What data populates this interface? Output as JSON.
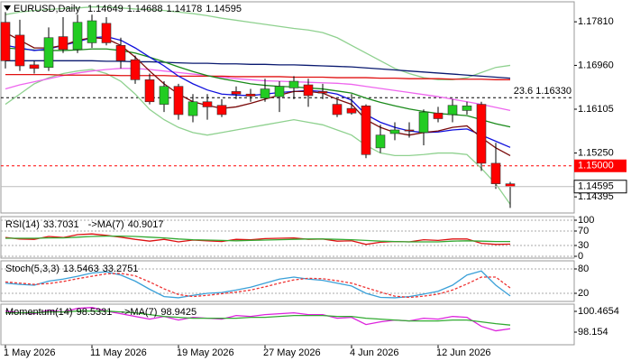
{
  "chart_data": [
    {
      "type": "candlestick",
      "title": "EURUSD,Daily",
      "categories": [
        "1 May 2026",
        null,
        null,
        null,
        null,
        null,
        "11 May 2026",
        null,
        null,
        null,
        null,
        null,
        "19 May 2026",
        null,
        null,
        null,
        null,
        null,
        "27 May 2026",
        null,
        null,
        null,
        null,
        null,
        "4 Jun 2026",
        null,
        null,
        null,
        null,
        null,
        "12 Jun 2026",
        null,
        null,
        null,
        null,
        null
      ],
      "open": [
        1.178,
        1.1755,
        1.1697,
        1.1692,
        1.1752,
        1.1727,
        1.174,
        1.1778,
        1.1735,
        1.1707,
        1.1668,
        1.162,
        1.1655,
        1.1598,
        1.1625,
        1.1618,
        1.1645,
        1.164,
        1.1632,
        1.1635,
        1.1652,
        1.1658,
        1.1645,
        1.162,
        1.1612,
        1.1617,
        1.1535,
        1.1563,
        1.157,
        1.1565,
        1.1603,
        1.16,
        1.1608,
        1.162,
        1.1505,
        1.14649
      ],
      "high": [
        1.18,
        1.1785,
        1.1705,
        1.177,
        1.179,
        1.1795,
        1.1795,
        1.179,
        1.175,
        1.1715,
        1.168,
        1.1665,
        1.166,
        1.164,
        1.164,
        1.163,
        1.1655,
        1.165,
        1.167,
        1.1665,
        1.1675,
        1.167,
        1.166,
        1.163,
        1.164,
        1.162,
        1.158,
        1.1585,
        1.1585,
        1.161,
        1.1615,
        1.163,
        1.1625,
        1.1625,
        1.1545,
        1.14688
      ],
      "low": [
        1.169,
        1.1685,
        1.168,
        1.1685,
        1.172,
        1.172,
        1.173,
        1.1735,
        1.169,
        1.166,
        1.162,
        1.1605,
        1.159,
        1.1585,
        1.159,
        1.1595,
        1.163,
        1.1625,
        1.1625,
        1.1605,
        1.163,
        1.1615,
        1.163,
        1.1595,
        1.16,
        1.1515,
        1.1525,
        1.155,
        1.1555,
        1.154,
        1.1585,
        1.1585,
        1.16,
        1.149,
        1.1455,
        1.14178
      ],
      "close": [
        1.1705,
        1.1695,
        1.169,
        1.175,
        1.1727,
        1.178,
        1.1783,
        1.174,
        1.1705,
        1.1668,
        1.1625,
        1.1655,
        1.16,
        1.1625,
        1.1615,
        1.16,
        1.164,
        1.1636,
        1.165,
        1.1655,
        1.1665,
        1.1637,
        1.1642,
        1.16,
        1.1603,
        1.1522,
        1.156,
        1.157,
        1.1568,
        1.1605,
        1.1592,
        1.1618,
        1.1617,
        1.1505,
        1.1465,
        1.14595
      ],
      "up_color": "#22cc22",
      "down_color": "#ff0000",
      "series": [
        {
          "color": "#8fd18f",
          "values": [
            1.1795,
            1.18,
            1.1803,
            1.1805,
            1.1807,
            1.1808,
            1.181,
            1.181,
            1.1808,
            1.1806,
            1.1805,
            1.1803,
            1.18,
            1.1797,
            1.1793,
            1.1788,
            1.1784,
            1.178,
            1.1776,
            1.1772,
            1.1768,
            1.1765,
            1.176,
            1.175,
            1.1735,
            1.172,
            1.1705,
            1.169,
            1.168,
            1.1672,
            1.1668,
            1.1668,
            1.1672,
            1.1682,
            1.1692,
            1.1696
          ]
        },
        {
          "color": "#8fd18f",
          "values": [
            1.162,
            1.164,
            1.166,
            1.1672,
            1.168,
            1.1685,
            1.1688,
            1.168,
            1.1665,
            1.164,
            1.161,
            1.159,
            1.1575,
            1.1565,
            1.156,
            1.1565,
            1.157,
            1.1575,
            1.158,
            1.1585,
            1.159,
            1.1585,
            1.158,
            1.157,
            1.156,
            1.154,
            1.1525,
            1.152,
            1.152,
            1.1522,
            1.1525,
            1.1525,
            1.1522,
            1.1495,
            1.1465,
            1.1425
          ]
        },
        {
          "color": "#ee66ee",
          "values": [
            1.165,
            1.1658,
            1.1664,
            1.167,
            1.1676,
            1.1681,
            1.1685,
            1.1688,
            1.169,
            1.169,
            1.1688,
            1.1685,
            1.1682,
            1.1679,
            1.1676,
            1.1673,
            1.167,
            1.1668,
            1.1666,
            1.1665,
            1.1664,
            1.1663,
            1.1662,
            1.1661,
            1.1659,
            1.1655,
            1.1651,
            1.1647,
            1.1643,
            1.1639,
            1.1635,
            1.163,
            1.1625,
            1.162,
            1.1614,
            1.1608
          ]
        },
        {
          "color": "#e01010",
          "values": [
            1.1678,
            1.1678,
            1.1678,
            1.1678,
            1.1677,
            1.1677,
            1.1677,
            1.1677,
            1.1676,
            1.1676,
            1.1676,
            1.1676,
            1.1675,
            1.1675,
            1.1675,
            1.1675,
            1.1674,
            1.1674,
            1.1674,
            1.1674,
            1.1673,
            1.1673,
            1.1673,
            1.1672,
            1.1672,
            1.1672,
            1.1671,
            1.1671,
            1.167,
            1.167,
            1.167,
            1.1669,
            1.1669,
            1.1669,
            1.1668,
            1.1668
          ]
        },
        {
          "color": "#0a1a70",
          "values": [
            1.1705,
            1.1705,
            1.1705,
            1.1705,
            1.1705,
            1.1705,
            1.1705,
            1.1704,
            1.1704,
            1.1703,
            1.1703,
            1.1702,
            1.1701,
            1.17,
            1.17,
            1.1699,
            1.1699,
            1.1698,
            1.1698,
            1.1697,
            1.1697,
            1.1696,
            1.1695,
            1.1694,
            1.1693,
            1.1691,
            1.1689,
            1.1687,
            1.1685,
            1.1683,
            1.1681,
            1.1679,
            1.1677,
            1.1675,
            1.1673,
            1.1671
          ]
        },
        {
          "color": "#1a8a1a",
          "values": [
            1.173,
            1.1728,
            1.1726,
            1.1725,
            1.1725,
            1.1726,
            1.1728,
            1.1728,
            1.1725,
            1.172,
            1.1712,
            1.1703,
            1.1693,
            1.1684,
            1.1676,
            1.167,
            1.1665,
            1.166,
            1.1657,
            1.1655,
            1.1654,
            1.1652,
            1.165,
            1.1646,
            1.1642,
            1.1632,
            1.1624,
            1.1617,
            1.1611,
            1.1606,
            1.1602,
            1.16,
            1.1598,
            1.159,
            1.1582,
            1.1576
          ]
        },
        {
          "color": "#1010dd",
          "values": [
            1.1735,
            1.173,
            1.1725,
            1.1728,
            1.1735,
            1.1742,
            1.175,
            1.1752,
            1.1745,
            1.173,
            1.1712,
            1.1695,
            1.1675,
            1.166,
            1.1648,
            1.164,
            1.1638,
            1.1637,
            1.164,
            1.1643,
            1.1645,
            1.1647,
            1.1645,
            1.164,
            1.1628,
            1.16,
            1.1585,
            1.1575,
            1.1568,
            1.1565,
            1.1566,
            1.157,
            1.1572,
            1.156,
            1.1548,
            1.1536
          ]
        },
        {
          "color": "#7a0a0a",
          "values": [
            1.176,
            1.1745,
            1.173,
            1.173,
            1.1735,
            1.1745,
            1.175,
            1.1748,
            1.1735,
            1.1712,
            1.1685,
            1.166,
            1.164,
            1.1625,
            1.1618,
            1.1612,
            1.1615,
            1.1622,
            1.163,
            1.1638,
            1.1645,
            1.1645,
            1.1642,
            1.163,
            1.162,
            1.159,
            1.1575,
            1.1565,
            1.156,
            1.1565,
            1.1568,
            1.1575,
            1.1578,
            1.1555,
            1.1535,
            1.152
          ]
        }
      ],
      "levels": [
        {
          "value": 1.1633,
          "label": "23.6 1.16330",
          "color": "#000000"
        },
        {
          "value": 1.15,
          "label": "1.15000",
          "color": "#ff0000"
        }
      ],
      "ylim": [
        1.1408,
        1.182
      ],
      "yticks": [
        {
          "value": 1.1781,
          "label": "1.17810"
        },
        {
          "value": 1.1696,
          "label": "1.16960"
        },
        1.16105,
        {
          "value": 1.1525,
          "label": "1.15250"
        },
        1.14395
      ]
    },
    {
      "type": "line",
      "grid": true,
      "ylim": [
        -5,
        110
      ],
      "yticks": [
        100,
        70,
        30,
        0
      ],
      "series": [
        {
          "name": "RSI(14)",
          "color": "#dd1111",
          "values": [
            52,
            48,
            47,
            55,
            52,
            60,
            62,
            58,
            53,
            47,
            42,
            47,
            40,
            45,
            43,
            41,
            47,
            46,
            49,
            50,
            51,
            47,
            48,
            42,
            43,
            33,
            39,
            41,
            40,
            46,
            44,
            48,
            48,
            36,
            33,
            33.7031
          ]
        },
        {
          "name": "->MA(7)",
          "color": "#33aa33",
          "values": [
            50,
            50,
            50,
            51,
            51,
            53,
            55,
            56,
            56,
            55,
            53,
            51,
            48,
            46,
            45,
            44,
            43,
            44,
            45,
            46,
            47,
            48,
            48,
            47,
            46,
            44,
            42,
            41,
            40,
            40,
            40,
            42,
            43,
            42,
            41,
            40.9017
          ]
        }
      ]
    },
    {
      "type": "line",
      "grid": true,
      "ylim": [
        0,
        100
      ],
      "yticks": [
        80,
        20
      ],
      "series": [
        {
          "name": "Stoch(5,3,3)",
          "color": "#3aa0d8",
          "values": [
            45,
            42,
            40,
            50,
            55,
            62,
            70,
            73,
            65,
            50,
            30,
            12,
            9,
            15,
            20,
            22,
            28,
            35,
            45,
            55,
            60,
            55,
            52,
            45,
            38,
            20,
            10,
            9,
            12,
            18,
            25,
            40,
            65,
            75,
            40,
            13.5463
          ]
        },
        {
          "color": "#ee3333",
          "dashed": true,
          "values": [
            48,
            45,
            42,
            44,
            49,
            56,
            62,
            68,
            69,
            63,
            48,
            31,
            17,
            12,
            15,
            19,
            23,
            28,
            36,
            45,
            53,
            57,
            56,
            51,
            45,
            34,
            23,
            13,
            10,
            13,
            18,
            28,
            43,
            60,
            60,
            33.2751
          ]
        }
      ]
    },
    {
      "type": "line",
      "grid": false,
      "ylim": [
        96.75,
        101.27
      ],
      "yticks": [
        100.4654,
        98.154
      ],
      "series": [
        {
          "name": "Momentum(14)",
          "color": "#dd22dd",
          "values": [
            100.5,
            100.3,
            100.2,
            100.6,
            100.4,
            100.8,
            100.9,
            100.5,
            100.2,
            99.9,
            99.6,
            99.9,
            99.5,
            99.8,
            99.7,
            99.6,
            100.0,
            99.9,
            100.1,
            100.2,
            100.3,
            100.1,
            100.1,
            99.7,
            99.8,
            99.0,
            99.3,
            99.5,
            99.4,
            99.7,
            99.6,
            99.9,
            99.8,
            98.8,
            98.3,
            98.5331
          ]
        },
        {
          "name": "->MA(7)",
          "color": "#33aa33",
          "values": [
            100.3,
            100.3,
            100.3,
            100.4,
            100.4,
            100.5,
            100.5,
            100.5,
            100.4,
            100.3,
            100.1,
            99.9,
            99.8,
            99.7,
            99.7,
            99.7,
            99.7,
            99.8,
            99.8,
            99.9,
            100.0,
            100.0,
            100.0,
            99.9,
            99.9,
            99.7,
            99.6,
            99.5,
            99.4,
            99.4,
            99.4,
            99.5,
            99.5,
            99.3,
            99.1,
            98.9425
          ]
        }
      ]
    }
  ]
}
